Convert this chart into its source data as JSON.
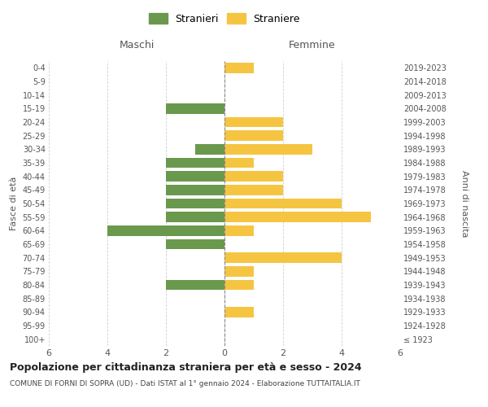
{
  "age_groups": [
    "100+",
    "95-99",
    "90-94",
    "85-89",
    "80-84",
    "75-79",
    "70-74",
    "65-69",
    "60-64",
    "55-59",
    "50-54",
    "45-49",
    "40-44",
    "35-39",
    "30-34",
    "25-29",
    "20-24",
    "15-19",
    "10-14",
    "5-9",
    "0-4"
  ],
  "birth_years": [
    "≤ 1923",
    "1924-1928",
    "1929-1933",
    "1934-1938",
    "1939-1943",
    "1944-1948",
    "1949-1953",
    "1954-1958",
    "1959-1963",
    "1964-1968",
    "1969-1973",
    "1974-1978",
    "1979-1983",
    "1984-1988",
    "1989-1993",
    "1994-1998",
    "1999-2003",
    "2004-2008",
    "2009-2013",
    "2014-2018",
    "2019-2023"
  ],
  "maschi": [
    0,
    0,
    0,
    0,
    2,
    0,
    0,
    2,
    4,
    2,
    2,
    2,
    2,
    2,
    1,
    0,
    0,
    2,
    0,
    0,
    0
  ],
  "femmine": [
    0,
    0,
    1,
    0,
    1,
    1,
    4,
    0,
    1,
    5,
    4,
    2,
    2,
    1,
    3,
    2,
    2,
    0,
    0,
    0,
    1
  ],
  "color_maschi": "#6a994e",
  "color_femmine": "#f5c542",
  "legend_maschi": "Stranieri",
  "legend_femmine": "Straniere",
  "title": "Popolazione per cittadinanza straniera per età e sesso - 2024",
  "subtitle": "COMUNE DI FORNI DI SOPRA (UD) - Dati ISTAT al 1° gennaio 2024 - Elaborazione TUTTAITALIA.IT",
  "xlabel_left": "Maschi",
  "xlabel_right": "Femmine",
  "ylabel_left": "Fasce di età",
  "ylabel_right": "Anni di nascita",
  "xlim": 6,
  "background_color": "#ffffff",
  "grid_color": "#d0d0d0"
}
